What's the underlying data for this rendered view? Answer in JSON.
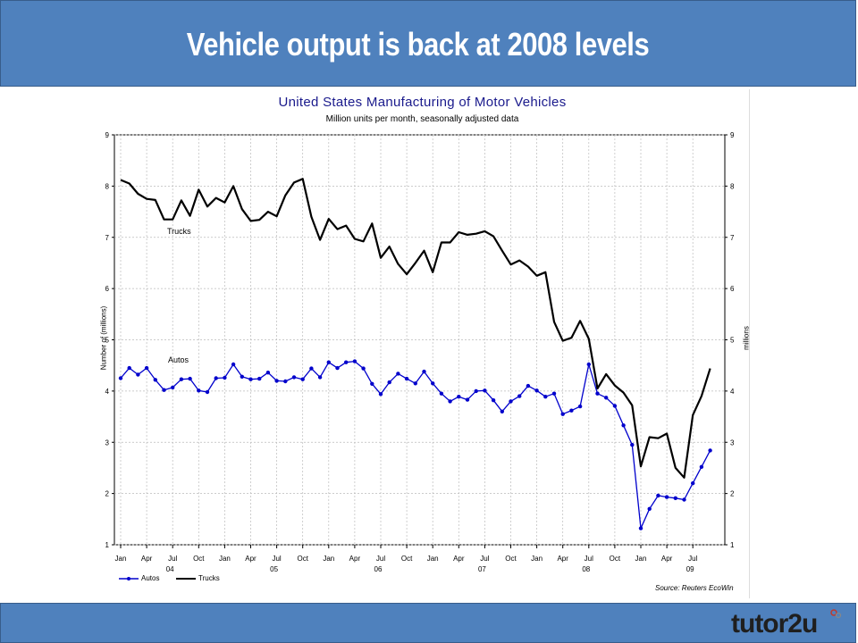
{
  "slide": {
    "title": "Vehicle output is back at 2008 levels",
    "logo_text": "tutor2u"
  },
  "colors": {
    "header": "#4f81bd",
    "autos": "#0000cc",
    "trucks": "#000000",
    "chart_title": "#1a1a8c"
  },
  "chart_data": {
    "type": "line",
    "title": "United States Manufacturing of Motor Vehicles",
    "subtitle": "Million units per month, seasonally adjusted data",
    "ylabel": "Number of (millions)",
    "ylabel_right": "millions",
    "ylim": [
      1,
      9
    ],
    "yticks": [
      1,
      2,
      3,
      4,
      5,
      6,
      7,
      8,
      9
    ],
    "grid": true,
    "legend_placement": "bottom-left",
    "source": "Source: Reuters EcoWin",
    "x_start": "2004-01",
    "x_end": "2009-11",
    "month_ticks": [
      "Jan",
      "Apr",
      "Jul",
      "Oct",
      "Jan",
      "Apr",
      "Jul",
      "Oct",
      "Jan",
      "Apr",
      "Jul",
      "Oct",
      "Jan",
      "Apr",
      "Jul",
      "Oct",
      "Jan",
      "Apr",
      "Jul",
      "Oct",
      "Jan",
      "Apr",
      "Jul"
    ],
    "year_ticks": [
      "04",
      "05",
      "06",
      "07",
      "08",
      "09"
    ],
    "annotations": [
      "Trucks",
      "Autos"
    ],
    "series": [
      {
        "name": "Autos",
        "color": "#0000cc",
        "marker": "circle",
        "values": [
          4.25,
          4.45,
          4.32,
          4.45,
          4.22,
          4.02,
          4.07,
          4.23,
          4.24,
          4.01,
          3.98,
          4.25,
          4.26,
          4.52,
          4.28,
          4.23,
          4.24,
          4.36,
          4.2,
          4.19,
          4.27,
          4.23,
          4.44,
          4.27,
          4.56,
          4.45,
          4.56,
          4.58,
          4.44,
          4.14,
          3.94,
          4.17,
          4.34,
          4.24,
          4.15,
          4.38,
          4.15,
          3.95,
          3.8,
          3.89,
          3.83,
          4.0,
          4.01,
          3.82,
          3.6,
          3.8,
          3.9,
          4.1,
          4.01,
          3.89,
          3.95,
          3.55,
          3.62,
          3.7,
          4.52,
          3.95,
          3.87,
          3.71,
          3.33,
          2.95,
          1.32,
          1.7,
          1.96,
          1.93,
          1.91,
          1.88,
          2.2,
          2.52,
          2.84
        ]
      },
      {
        "name": "Trucks",
        "color": "#000000",
        "marker": "none",
        "values": [
          8.12,
          8.05,
          7.85,
          7.75,
          7.73,
          7.35,
          7.35,
          7.72,
          7.42,
          7.93,
          7.6,
          7.77,
          7.68,
          8.0,
          7.55,
          7.32,
          7.34,
          7.5,
          7.41,
          7.82,
          8.07,
          8.14,
          7.4,
          6.95,
          7.36,
          7.16,
          7.23,
          6.97,
          6.92,
          7.27,
          6.6,
          6.82,
          6.48,
          6.28,
          6.5,
          6.74,
          6.32,
          6.9,
          6.9,
          7.1,
          7.05,
          7.07,
          7.12,
          7.02,
          6.74,
          6.47,
          6.55,
          6.43,
          6.25,
          6.32,
          5.35,
          4.98,
          5.04,
          5.37,
          5.02,
          4.05,
          4.33,
          4.11,
          3.97,
          3.72,
          2.53,
          3.1,
          3.08,
          3.17,
          2.5,
          2.31,
          3.53,
          3.9,
          4.44
        ]
      }
    ]
  }
}
